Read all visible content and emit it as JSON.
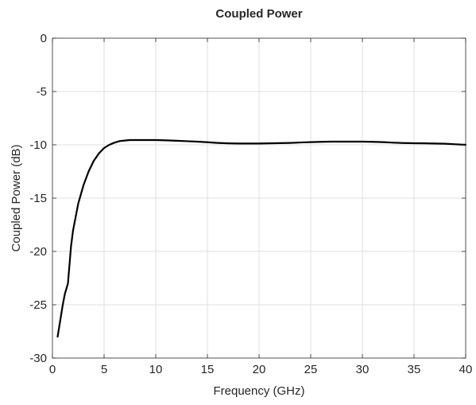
{
  "chart_data": {
    "type": "line",
    "title": "Coupled Power",
    "xlabel": "Frequency (GHz)",
    "ylabel": "Coupled Power (dB)",
    "xlim": [
      0,
      40
    ],
    "ylim": [
      -30,
      0
    ],
    "xticks": [
      0,
      5,
      10,
      15,
      20,
      25,
      30,
      35,
      40
    ],
    "yticks": [
      -30,
      -25,
      -20,
      -15,
      -10,
      -5,
      0
    ],
    "grid": true,
    "series": [
      {
        "color": "#000000",
        "x": [
          0.5,
          0.8,
          1.0,
          1.2,
          1.5,
          1.8,
          2.0,
          2.5,
          3.0,
          3.5,
          4.0,
          4.5,
          5.0,
          5.5,
          6.0,
          6.5,
          7.0,
          7.5,
          8.0,
          9.0,
          10.0,
          11.0,
          12.0,
          13.0,
          14.0,
          15.0,
          16.0,
          17.0,
          18.0,
          19.0,
          20.0,
          21.0,
          22.0,
          23.0,
          24.0,
          25.0,
          26.0,
          27.0,
          28.0,
          29.0,
          30.0,
          31.0,
          32.0,
          33.0,
          34.0,
          35.0,
          36.0,
          37.0,
          38.0,
          39.0,
          40.0
        ],
        "y": [
          -28.0,
          -26.2,
          -25.0,
          -24.0,
          -23.0,
          -19.5,
          -18.0,
          -15.5,
          -13.8,
          -12.5,
          -11.5,
          -10.8,
          -10.3,
          -10.0,
          -9.8,
          -9.65,
          -9.6,
          -9.55,
          -9.55,
          -9.55,
          -9.55,
          -9.58,
          -9.62,
          -9.66,
          -9.7,
          -9.76,
          -9.82,
          -9.86,
          -9.88,
          -9.88,
          -9.88,
          -9.86,
          -9.84,
          -9.82,
          -9.78,
          -9.75,
          -9.72,
          -9.7,
          -9.7,
          -9.7,
          -9.7,
          -9.72,
          -9.75,
          -9.8,
          -9.83,
          -9.85,
          -9.86,
          -9.88,
          -9.9,
          -9.95,
          -10.0
        ]
      }
    ]
  }
}
